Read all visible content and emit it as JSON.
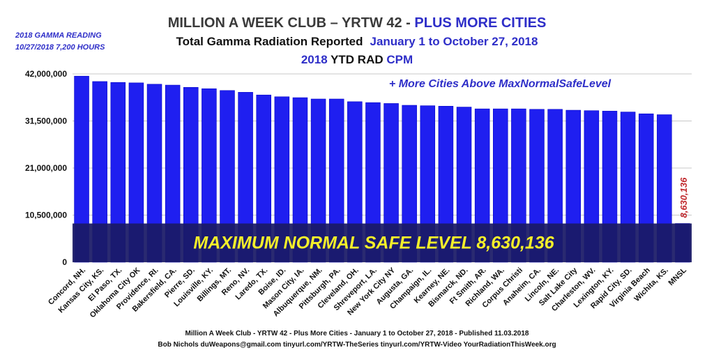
{
  "header": {
    "title_main": "MILLION A WEEK CLUB – YRTW 42 -",
    "title_highlight": "PLUS MORE CITIES",
    "subtitle_main": "Total Gamma Radiation Reported",
    "subtitle_highlight": "January 1 to October 27, 2018",
    "line3_year": "2018",
    "line3_main": "YTD RAD",
    "line3_highlight": "CPM"
  },
  "gamma_reading": {
    "line1": "2018 GAMMA READING",
    "line2": "10/27/2018 7,200 HOURS"
  },
  "footer": {
    "line1": "Million A Week Club - YRTW 42 - Plus More Cities - January 1 to October 27, 2018  -  Published 11.03.2018",
    "line2": "Bob Nichols  duWeapons@gmail.com tinyurl.com/YRTW-TheSeries  tinyurl.com/YRTW-Video  YourRadiationThisWeek.org"
  },
  "colors": {
    "bar": "#1f1ff0",
    "bar_edge": "#0000c8",
    "band": "#1a1a66",
    "band_text": "#f5f02a",
    "annotation": "#2e2ec8",
    "mnsl_label": "#c0282c"
  },
  "chart_data": {
    "type": "bar",
    "title": "MILLION A WEEK CLUB – YRTW 42 - PLUS MORE CITIES",
    "ylabel": "2018 YTD RAD CPM",
    "ylim": [
      0,
      42000000
    ],
    "yticks": [
      0,
      10500000,
      21000000,
      31500000,
      42000000
    ],
    "ytick_labels": [
      "0",
      "10,500,000",
      "21,000,000",
      "31,500,000",
      "42,000,000"
    ],
    "categories": [
      "Concord, NH.",
      "Kansas City, KS.",
      "El Paso, TX.",
      "Oklahoma City OK",
      "Providence, RI.",
      "Bakersfield, CA.",
      "Pierre, SD.",
      "Louisville, KY.",
      "Billings, MT.",
      "Reno, NV.",
      "Laredo, TX.",
      "Boise, ID.",
      "Mason City, IA.",
      "Albuquerque, NM.",
      "Pittsburgh, PA.",
      "Cleveland, OH.",
      "Shreveport, LA.",
      "New York City NY",
      "Augusta, GA.",
      "Champaign, IL.",
      "Kearney, NE.",
      "Bismarck, ND.",
      "Ft Smith, AR.",
      "Richland, WA.",
      "Corpus Christi",
      "Anaheim, CA.",
      "Lincoln, NE.",
      "Salt Lake City",
      "Charleston, WV.",
      "Lexington, KY.",
      "Rapid City, SD.",
      "Virginia Beach",
      "Wichita, KS.",
      "MNSL"
    ],
    "values": [
      41500000,
      40300000,
      40100000,
      40000000,
      39700000,
      39500000,
      39000000,
      38700000,
      38300000,
      37900000,
      37300000,
      36900000,
      36700000,
      36400000,
      36400000,
      35800000,
      35600000,
      35400000,
      35000000,
      34900000,
      34800000,
      34600000,
      34200000,
      34200000,
      34200000,
      34100000,
      34100000,
      33900000,
      33800000,
      33700000,
      33500000,
      33100000,
      32900000,
      8630136
    ],
    "annotations": {
      "top_note": "+ More Cities Above MaxNormalSafeLevel",
      "band_text": "MAXIMUM NORMAL SAFE LEVEL 8,630,136",
      "mnsl_value_label": "8,630,136"
    },
    "grid": true,
    "legend": "none"
  }
}
